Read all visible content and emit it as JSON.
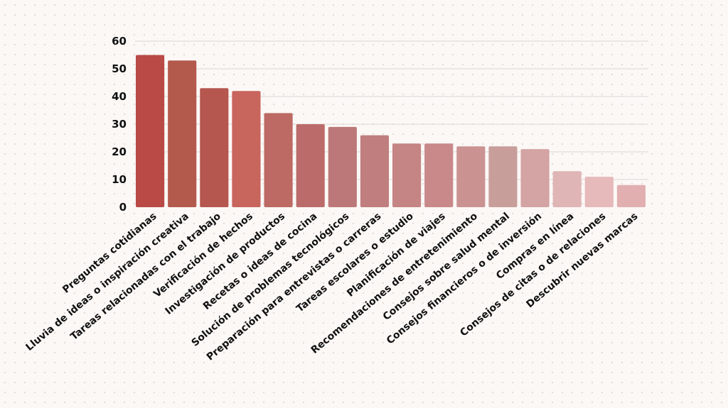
{
  "chart_data": {
    "type": "bar",
    "title": "",
    "xlabel": "",
    "ylabel": "",
    "ylim": [
      0,
      60
    ],
    "yticks": [
      0,
      10,
      20,
      30,
      40,
      50,
      60
    ],
    "grid": true,
    "categories": [
      "Preguntas cotidianas",
      "Lluvia de ideas o inspiración creativa",
      "Tareas relacionadas con el trabajo",
      "Verificación de hechos",
      "Investigación de productos",
      "Recetas o ideas de cocina",
      "Solución de problemas tecnológicos",
      "Preparación para entrevistas o carreras",
      "Tareas escolares o estudio",
      "Planificación de viajes",
      "Recomendaciones de entretenimiento",
      "Consejos sobre salud mental",
      "Consejos financieros o de inversión",
      "Compras en línea",
      "Consejos de citas o de relaciones",
      "Descubrir nuevas marcas"
    ],
    "values": [
      55,
      53,
      43,
      42,
      34,
      30,
      29,
      26,
      23,
      23,
      22,
      22,
      21,
      13,
      11,
      8
    ],
    "colors": [
      "#b94a45",
      "#b45a4d",
      "#b5574f",
      "#c8655d",
      "#bc6a63",
      "#bb6c6a",
      "#bc7878",
      "#c07e7e",
      "#c48584",
      "#c98889",
      "#ca9391",
      "#c89e9b",
      "#d4a3a3",
      "#e0b5b5",
      "#e6b9ba",
      "#e2afb1"
    ]
  }
}
